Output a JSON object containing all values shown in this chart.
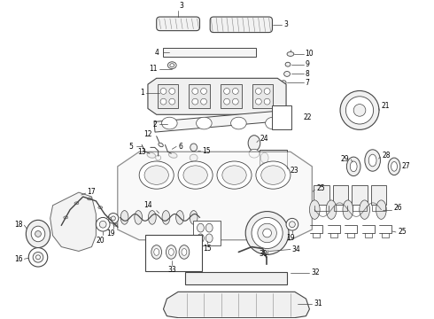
{
  "background_color": "#ffffff",
  "line_color": "#444444",
  "text_color": "#000000",
  "fig_width": 4.9,
  "fig_height": 3.6,
  "dpi": 100
}
